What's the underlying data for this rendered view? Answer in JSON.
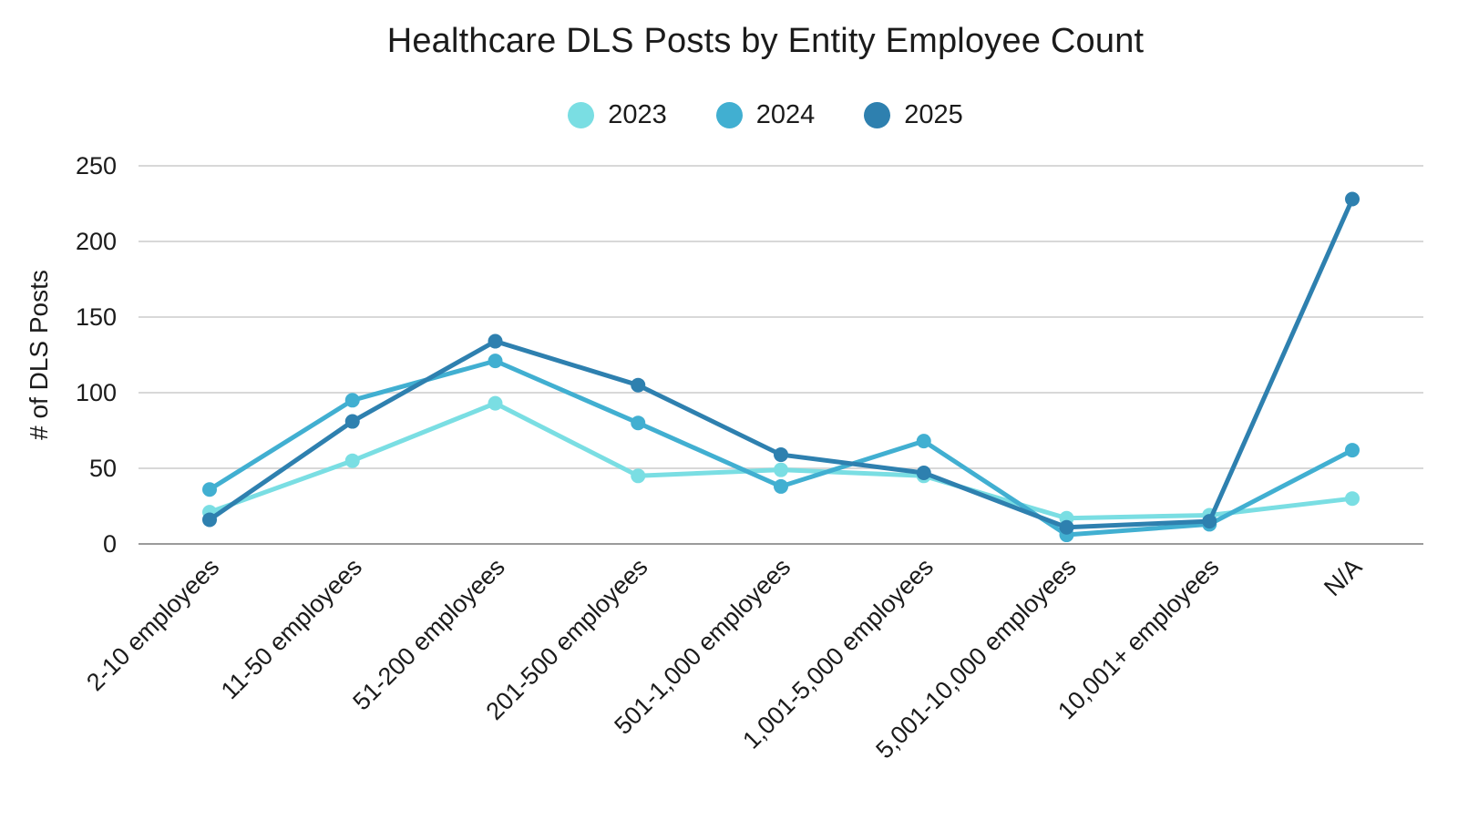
{
  "chart": {
    "title": "Healthcare DLS Posts by Entity Employee Count"
  },
  "chart_data": {
    "type": "line",
    "title": "Healthcare DLS Posts by Entity Employee Count",
    "xlabel": "",
    "ylabel": "# of DLS Posts",
    "ylim": [
      0,
      250
    ],
    "yticks": [
      0,
      50,
      100,
      150,
      200,
      250
    ],
    "grid": true,
    "legend_position": "top",
    "marker": "circle",
    "categories": [
      "2-10 employees",
      "11-50 employees",
      "51-200 employees",
      "201-500 employees",
      "501-1,000 employees",
      "1,001-5,000 employees",
      "5,001-10,000 employees",
      "10,001+ employees",
      "N/A"
    ],
    "series": [
      {
        "name": "2023",
        "color": "#7ADEE3",
        "values": [
          21,
          55,
          93,
          45,
          49,
          45,
          17,
          19,
          30
        ]
      },
      {
        "name": "2024",
        "color": "#41AFD1",
        "values": [
          36,
          95,
          121,
          80,
          38,
          68,
          6,
          13,
          62
        ]
      },
      {
        "name": "2025",
        "color": "#2E80AF",
        "values": [
          16,
          81,
          134,
          105,
          59,
          47,
          11,
          15,
          228
        ]
      }
    ],
    "colors": {
      "gridline": "#d8d8d8",
      "zero_axis": "#9b9b9b",
      "text": "#1b1b1b"
    }
  }
}
